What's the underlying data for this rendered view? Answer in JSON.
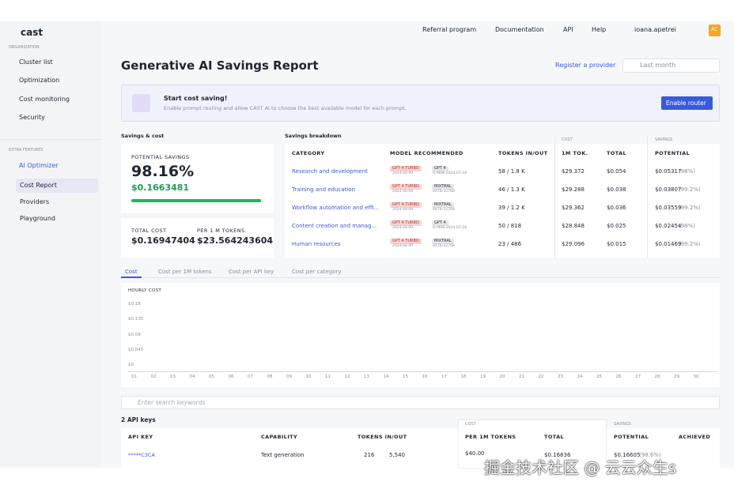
{
  "sidebar": {
    "logo": "cast",
    "org_label": "ORGANIZATION",
    "nav": [
      "Cluster list",
      "Optimization",
      "Cost monitoring",
      "Security"
    ],
    "extra_label": "EXTRA FEATURES",
    "ai_optimizer": "AI Optimizer",
    "sub": [
      "Cost Report",
      "Providers",
      "Playground"
    ]
  },
  "topbar": {
    "links": [
      "Referral program",
      "Documentation",
      "API",
      "Help"
    ],
    "user": "ioana.apetrei",
    "avatar": "AC"
  },
  "header": {
    "title": "Generative AI Savings Report",
    "register": "Register a provider",
    "period": "Last month"
  },
  "banner": {
    "title": "Start cost saving!",
    "text": "Enable prompt routing and allow CAST AI to choose the best available model for each prompt.",
    "button": "Enable router"
  },
  "savings": {
    "label": "Savings & cost",
    "potential_label": "POTENTIAL SAVINGS",
    "percent": "98.16%",
    "amount": "$0.1663481",
    "total_cost_label": "TOTAL COST",
    "total_cost": "$0.16947404",
    "per_label": "PER 1 M TOKENS",
    "per": "$23.564243604"
  },
  "breakdown": {
    "label": "Savings breakdown",
    "cost_group": "COST",
    "savings_group": "SAVINGS",
    "headers": [
      "CATEGORY",
      "MODEL RECOMMENDED",
      "TOKENS IN/OUT",
      "1M TOK.",
      "TOTAL",
      "POTENTIAL"
    ],
    "rows": [
      {
        "category": "Research and development",
        "from_model": "GPT 4 TURBO",
        "from_date": "2024-04-09",
        "to_model": "GPT 4",
        "to_date": "O-MINI-2024-07-18",
        "tokens": "58 / 1.8 K",
        "per_m": "$29.372",
        "total": "$0.054",
        "potential": "$0.05317",
        "pct": "(98%)"
      },
      {
        "category": "Training and education",
        "from_model": "GPT 4 TURBO",
        "from_date": "2024-04-09",
        "to_model": "MIXTRAL",
        "to_date": "8X7B-32768",
        "tokens": "46 / 1.3 K",
        "per_m": "$29.288",
        "total": "$0.038",
        "potential": "$0.03807",
        "pct": "(99.2%)"
      },
      {
        "category": "Workflow automation and effi...",
        "from_model": "GPT 4 TURBO",
        "from_date": "2024-04-09",
        "to_model": "MIXTRAL",
        "to_date": "8X7B-32768",
        "tokens": "39 / 1.2 K",
        "per_m": "$29.362",
        "total": "$0.036",
        "potential": "$0.03559",
        "pct": "(99.2%)"
      },
      {
        "category": "Content creation and manag...",
        "from_model": "GPT 4 TURBO",
        "from_date": "2024-04-09",
        "to_model": "GPT 4",
        "to_date": "O-MINI-2024-07-18",
        "tokens": "50 / 818",
        "per_m": "$28.848",
        "total": "$0.025",
        "potential": "$0.02454",
        "pct": "(98%)"
      },
      {
        "category": "Human resources",
        "from_model": "GPT 4 TURBO",
        "from_date": "2024-04-09",
        "to_model": "MIXTRAL",
        "to_date": "8X7B-32768",
        "tokens": "23 / 486",
        "per_m": "$29.096",
        "total": "$0.015",
        "potential": "$0.01469",
        "pct": "(99.2%)"
      }
    ]
  },
  "tabs": [
    "Cost",
    "Cost per 1M tokens",
    "Cost per API key",
    "Cost per category"
  ],
  "chart": {
    "label": "HOURLY COST",
    "yticks": [
      "$0.18",
      "$0.135",
      "$0.09",
      "$0.045",
      "$0"
    ],
    "xticks": [
      "01",
      "02",
      "03",
      "04",
      "05",
      "06",
      "07",
      "08",
      "09",
      "10",
      "11",
      "12",
      "13",
      "14",
      "15",
      "16",
      "17",
      "18",
      "19",
      "20",
      "21",
      "22",
      "23",
      "24",
      "25",
      "26",
      "27",
      "28",
      "29",
      "30"
    ]
  },
  "search": {
    "placeholder": "Enter search keywords"
  },
  "api": {
    "count": "2 API keys",
    "cost_group": "COST",
    "savings_group": "SAVINGS",
    "headers": [
      "API KEY",
      "CAPABILITY",
      "TOKENS IN/OUT",
      "PER 1M TOKENS",
      "TOTAL",
      "POTENTIAL",
      "ACHIEVED"
    ],
    "rows": [
      {
        "key": "*****C3CA",
        "capability": "Text generation",
        "tokens_in": "216",
        "tokens_out": "5,540",
        "per": "$40.00",
        "total": "$0.16836",
        "potential": "$0.16605",
        "pct": "(98.6%)"
      }
    ]
  },
  "watermark": "掘金技术社区 @ 云云众生s"
}
